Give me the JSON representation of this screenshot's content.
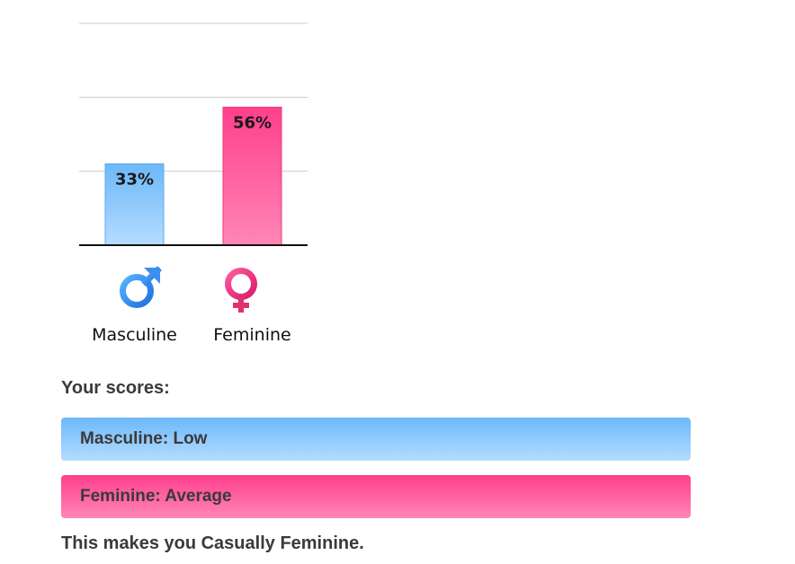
{
  "chart_data": {
    "type": "bar",
    "categories": [
      "Masculine",
      "Feminine"
    ],
    "values": [
      33,
      56
    ],
    "value_labels": [
      "33%",
      "56%"
    ],
    "ylim": [
      0,
      90
    ],
    "gridlines": [
      30,
      60,
      90
    ],
    "grid": true,
    "title": "",
    "xlabel": "",
    "ylabel": "",
    "colors": {
      "Masculine": {
        "top": "#6cb8f9",
        "bottom": "#b5dcff",
        "stroke": "#5aa9ef"
      },
      "Feminine": {
        "top": "#ff3f8d",
        "bottom": "#ff86b5",
        "stroke": "#ee3a84"
      }
    },
    "icons": [
      "male-symbol-icon",
      "female-symbol-icon"
    ]
  },
  "results": {
    "heading": "Your scores:",
    "masculine": "Masculine: Low",
    "feminine": "Feminine: Average",
    "conclusion": "This makes you Casually Feminine."
  }
}
